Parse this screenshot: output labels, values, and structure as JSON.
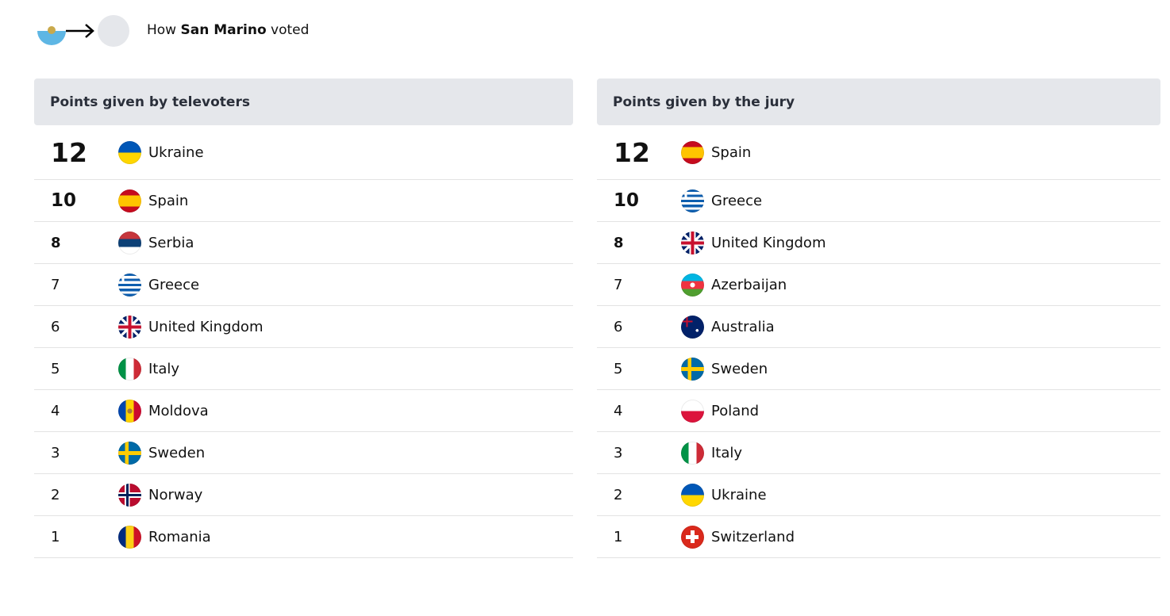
{
  "header": {
    "prefix": "How",
    "country": "San Marino",
    "suffix": "voted"
  },
  "tables": [
    {
      "title": "Points given by televoters",
      "rows": [
        {
          "points": 12,
          "country": "Ukraine"
        },
        {
          "points": 10,
          "country": "Spain"
        },
        {
          "points": 8,
          "country": "Serbia"
        },
        {
          "points": 7,
          "country": "Greece"
        },
        {
          "points": 6,
          "country": "United Kingdom"
        },
        {
          "points": 5,
          "country": "Italy"
        },
        {
          "points": 4,
          "country": "Moldova"
        },
        {
          "points": 3,
          "country": "Sweden"
        },
        {
          "points": 2,
          "country": "Norway"
        },
        {
          "points": 1,
          "country": "Romania"
        }
      ]
    },
    {
      "title": "Points given by the jury",
      "rows": [
        {
          "points": 12,
          "country": "Spain"
        },
        {
          "points": 10,
          "country": "Greece"
        },
        {
          "points": 8,
          "country": "United Kingdom"
        },
        {
          "points": 7,
          "country": "Azerbaijan"
        },
        {
          "points": 6,
          "country": "Australia"
        },
        {
          "points": 5,
          "country": "Sweden"
        },
        {
          "points": 4,
          "country": "Poland"
        },
        {
          "points": 3,
          "country": "Italy"
        },
        {
          "points": 2,
          "country": "Ukraine"
        },
        {
          "points": 1,
          "country": "Switzerland"
        }
      ]
    }
  ]
}
